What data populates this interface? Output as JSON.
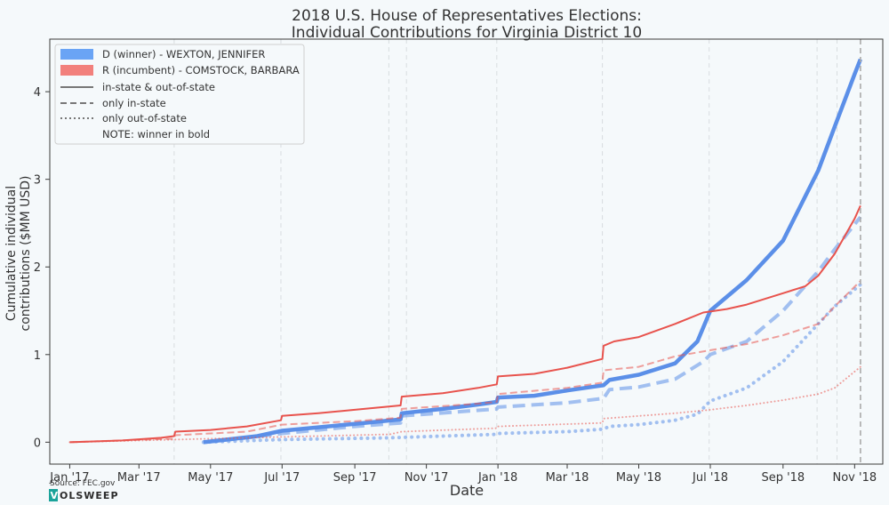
{
  "chart_data": {
    "type": "line",
    "title_line1": "2018 U.S. House of Representatives Elections:",
    "title_line2": "Individual Contributions for Virginia District 10",
    "xlabel": "Date",
    "ylabel_line1": "Cumulative individual",
    "ylabel_line2": "contributions ($MM USD)",
    "x_ticks": [
      "Jan '17",
      "Mar '17",
      "May '17",
      "Jul '17",
      "Sep '17",
      "Nov '17",
      "Jan '18",
      "Mar '18",
      "May '18",
      "Jul '18",
      "Sep '18",
      "Nov '18"
    ],
    "y_ticks": [
      "0",
      "1",
      "2",
      "3",
      "4"
    ],
    "ylim": [
      -0.25,
      4.6
    ],
    "xlim": [
      "2016-12-15",
      "2018-11-25"
    ],
    "election_day": "2018-11-06",
    "legend": {
      "placement": "top-left",
      "entries": [
        {
          "label": "D (winner) - WEXTON, JENNIFER",
          "kind": "patch",
          "color": "#6aa4f5"
        },
        {
          "label": "R (incumbent) - COMSTOCK, BARBARA",
          "kind": "patch",
          "color": "#f2807c"
        },
        {
          "label": "in-state & out-of-state",
          "kind": "solid"
        },
        {
          "label": "only in-state",
          "kind": "dashed"
        },
        {
          "label": "only out-of-state",
          "kind": "dotted"
        },
        {
          "label": "NOTE: winner in bold",
          "kind": "none"
        }
      ]
    },
    "colors": {
      "democrat": "#5b8fe8",
      "republican": "#e8534d"
    },
    "series": [
      {
        "name": "D (winner) - WEXTON, JENNIFER",
        "subset": "in-state & out-of-state",
        "party": "D",
        "style": "solid",
        "bold": true,
        "points": [
          [
            "2017-04-25",
            0
          ],
          [
            "2017-05-15",
            0.03
          ],
          [
            "2017-06-10",
            0.07
          ],
          [
            "2017-07-01",
            0.13
          ],
          [
            "2017-08-01",
            0.17
          ],
          [
            "2017-09-01",
            0.21
          ],
          [
            "2017-10-10",
            0.26
          ],
          [
            "2017-10-11",
            0.33
          ],
          [
            "2017-11-15",
            0.38
          ],
          [
            "2017-12-15",
            0.43
          ],
          [
            "2017-12-31",
            0.46
          ],
          [
            "2018-01-01",
            0.51
          ],
          [
            "2018-02-01",
            0.53
          ],
          [
            "2018-03-01",
            0.59
          ],
          [
            "2018-04-01",
            0.65
          ],
          [
            "2018-04-06",
            0.71
          ],
          [
            "2018-05-01",
            0.77
          ],
          [
            "2018-06-01",
            0.9
          ],
          [
            "2018-06-20",
            1.15
          ],
          [
            "2018-07-01",
            1.5
          ],
          [
            "2018-08-01",
            1.85
          ],
          [
            "2018-09-01",
            2.3
          ],
          [
            "2018-10-01",
            3.1
          ],
          [
            "2018-10-15",
            3.6
          ],
          [
            "2018-11-01",
            4.2
          ],
          [
            "2018-11-06",
            4.37
          ]
        ]
      },
      {
        "name": "D (winner) - WEXTON, JENNIFER",
        "subset": "only in-state",
        "party": "D",
        "style": "dashed",
        "bold": true,
        "points": [
          [
            "2017-04-25",
            0
          ],
          [
            "2017-06-01",
            0.05
          ],
          [
            "2017-07-01",
            0.1
          ],
          [
            "2017-08-01",
            0.14
          ],
          [
            "2017-09-01",
            0.18
          ],
          [
            "2017-10-10",
            0.22
          ],
          [
            "2017-10-11",
            0.3
          ],
          [
            "2017-12-01",
            0.35
          ],
          [
            "2017-12-31",
            0.38
          ],
          [
            "2018-01-01",
            0.4
          ],
          [
            "2018-03-01",
            0.45
          ],
          [
            "2018-04-01",
            0.5
          ],
          [
            "2018-04-06",
            0.6
          ],
          [
            "2018-05-01",
            0.63
          ],
          [
            "2018-06-01",
            0.72
          ],
          [
            "2018-06-25",
            0.92
          ],
          [
            "2018-07-01",
            1.0
          ],
          [
            "2018-08-01",
            1.15
          ],
          [
            "2018-09-01",
            1.5
          ],
          [
            "2018-10-01",
            1.95
          ],
          [
            "2018-10-15",
            2.2
          ],
          [
            "2018-11-06",
            2.57
          ]
        ]
      },
      {
        "name": "D (winner) - WEXTON, JENNIFER",
        "subset": "only out-of-state",
        "party": "D",
        "style": "dotted",
        "bold": true,
        "points": [
          [
            "2017-04-25",
            0
          ],
          [
            "2017-07-01",
            0.03
          ],
          [
            "2017-10-01",
            0.05
          ],
          [
            "2017-12-31",
            0.09
          ],
          [
            "2018-01-01",
            0.1
          ],
          [
            "2018-03-01",
            0.12
          ],
          [
            "2018-04-01",
            0.15
          ],
          [
            "2018-04-06",
            0.18
          ],
          [
            "2018-05-01",
            0.2
          ],
          [
            "2018-06-01",
            0.25
          ],
          [
            "2018-06-20",
            0.32
          ],
          [
            "2018-07-01",
            0.47
          ],
          [
            "2018-08-01",
            0.62
          ],
          [
            "2018-09-01",
            0.92
          ],
          [
            "2018-10-01",
            1.35
          ],
          [
            "2018-10-15",
            1.55
          ],
          [
            "2018-11-06",
            1.8
          ]
        ]
      },
      {
        "name": "R (incumbent) - COMSTOCK, BARBARA",
        "subset": "in-state & out-of-state",
        "party": "R",
        "style": "solid",
        "bold": false,
        "points": [
          [
            "2017-01-01",
            0
          ],
          [
            "2017-02-15",
            0.02
          ],
          [
            "2017-03-20",
            0.05
          ],
          [
            "2017-03-31",
            0.07
          ],
          [
            "2017-04-01",
            0.12
          ],
          [
            "2017-05-01",
            0.14
          ],
          [
            "2017-06-01",
            0.18
          ],
          [
            "2017-06-30",
            0.25
          ],
          [
            "2017-07-01",
            0.3
          ],
          [
            "2017-08-01",
            0.33
          ],
          [
            "2017-09-01",
            0.37
          ],
          [
            "2017-10-10",
            0.42
          ],
          [
            "2017-10-11",
            0.52
          ],
          [
            "2017-11-15",
            0.56
          ],
          [
            "2017-12-15",
            0.62
          ],
          [
            "2017-12-31",
            0.66
          ],
          [
            "2018-01-01",
            0.75
          ],
          [
            "2018-02-01",
            0.78
          ],
          [
            "2018-03-01",
            0.85
          ],
          [
            "2018-03-31",
            0.95
          ],
          [
            "2018-04-01",
            1.1
          ],
          [
            "2018-04-10",
            1.15
          ],
          [
            "2018-05-01",
            1.2
          ],
          [
            "2018-06-01",
            1.35
          ],
          [
            "2018-06-25",
            1.48
          ],
          [
            "2018-07-15",
            1.52
          ],
          [
            "2018-08-01",
            1.57
          ],
          [
            "2018-09-01",
            1.7
          ],
          [
            "2018-09-20",
            1.78
          ],
          [
            "2018-10-01",
            1.9
          ],
          [
            "2018-10-15",
            2.15
          ],
          [
            "2018-11-01",
            2.55
          ],
          [
            "2018-11-06",
            2.7
          ]
        ]
      },
      {
        "name": "R (incumbent) - COMSTOCK, BARBARA",
        "subset": "only in-state",
        "party": "R",
        "style": "dashed",
        "bold": false,
        "points": [
          [
            "2017-01-01",
            0
          ],
          [
            "2017-03-31",
            0.04
          ],
          [
            "2017-04-01",
            0.08
          ],
          [
            "2017-06-01",
            0.12
          ],
          [
            "2017-07-01",
            0.2
          ],
          [
            "2017-09-01",
            0.24
          ],
          [
            "2017-10-10",
            0.28
          ],
          [
            "2017-10-11",
            0.38
          ],
          [
            "2017-12-15",
            0.44
          ],
          [
            "2017-12-31",
            0.46
          ],
          [
            "2018-01-01",
            0.55
          ],
          [
            "2018-03-01",
            0.62
          ],
          [
            "2018-03-31",
            0.68
          ],
          [
            "2018-04-01",
            0.82
          ],
          [
            "2018-05-01",
            0.86
          ],
          [
            "2018-06-01",
            0.98
          ],
          [
            "2018-07-01",
            1.05
          ],
          [
            "2018-08-01",
            1.12
          ],
          [
            "2018-09-01",
            1.22
          ],
          [
            "2018-10-01",
            1.35
          ],
          [
            "2018-10-15",
            1.55
          ],
          [
            "2018-11-06",
            1.84
          ]
        ]
      },
      {
        "name": "R (incumbent) - COMSTOCK, BARBARA",
        "subset": "only out-of-state",
        "party": "R",
        "style": "dotted",
        "bold": false,
        "points": [
          [
            "2017-01-01",
            0
          ],
          [
            "2017-04-01",
            0.03
          ],
          [
            "2017-07-01",
            0.06
          ],
          [
            "2017-10-01",
            0.09
          ],
          [
            "2017-10-11",
            0.12
          ],
          [
            "2017-12-31",
            0.16
          ],
          [
            "2018-01-01",
            0.18
          ],
          [
            "2018-03-31",
            0.22
          ],
          [
            "2018-04-01",
            0.27
          ],
          [
            "2018-06-01",
            0.33
          ],
          [
            "2018-07-01",
            0.37
          ],
          [
            "2018-08-01",
            0.42
          ],
          [
            "2018-09-01",
            0.48
          ],
          [
            "2018-10-01",
            0.55
          ],
          [
            "2018-10-15",
            0.62
          ],
          [
            "2018-11-06",
            0.86
          ]
        ]
      }
    ]
  },
  "footer": {
    "source": "Source: FEC.gov",
    "brand_mark": "V",
    "brand_rest": "OLSWEEP"
  }
}
